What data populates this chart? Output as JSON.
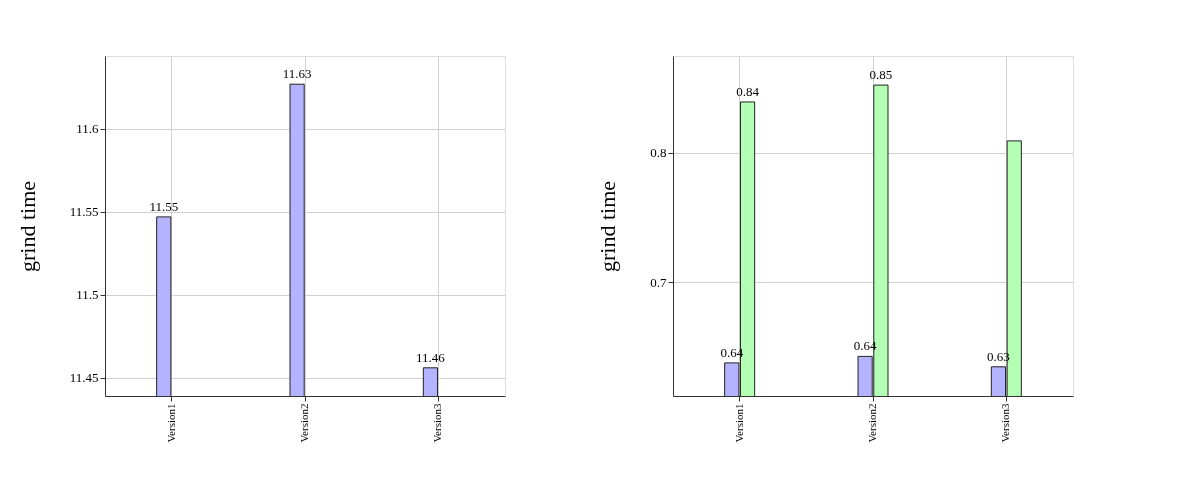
{
  "chart_data": [
    {
      "type": "bar",
      "ylabel": "grind time",
      "categories": [
        "Version1",
        "Version2",
        "Version3"
      ],
      "series": [
        {
          "color": "#b3b3ff",
          "values": [
            11.547,
            11.627,
            11.456
          ],
          "value_labels": [
            "11.55",
            "11.63",
            "11.46"
          ]
        }
      ],
      "ylim": [
        11.439,
        11.644
      ],
      "yticks": [
        11.45,
        11.5,
        11.55,
        11.6
      ],
      "grid": true
    },
    {
      "type": "bar",
      "ylabel": "grind time",
      "categories": [
        "Version1",
        "Version2",
        "Version3"
      ],
      "series": [
        {
          "color": "#b3b3ff",
          "values": [
            0.638,
            0.643,
            0.635
          ],
          "value_labels": [
            "0.64",
            "0.64",
            "0.63"
          ]
        },
        {
          "color": "#b3ffb3",
          "values": [
            0.839,
            0.852,
            0.809
          ],
          "value_labels": [
            "0.84",
            "0.85",
            null
          ]
        }
      ],
      "ylim": [
        0.6125,
        0.8744
      ],
      "yticks": [
        0.7,
        0.8
      ],
      "grid": true
    }
  ]
}
